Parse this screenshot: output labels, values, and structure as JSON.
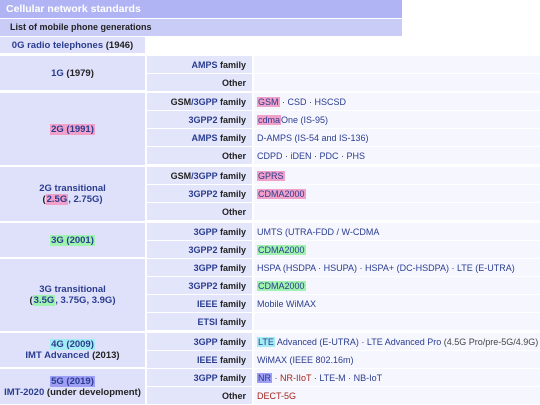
{
  "title": "Cellular network standards",
  "subtitle": "List of mobile phone generations",
  "rows_0g": {
    "label": "0G radio telephones",
    "year": " (1946)"
  },
  "groups": [
    {
      "gen_lines": [
        {
          "text": "1G",
          "suffix": " (1979)"
        }
      ],
      "rows": [
        {
          "family": "AMPS family",
          "values": []
        },
        {
          "family": "Other",
          "values": []
        }
      ]
    }
  ],
  "g1": {
    "gen": "1G",
    "year": " (1979)",
    "f1": "AMPS",
    "f1s": " family",
    "f2": "Other"
  },
  "g2": {
    "gen": "2G (1991)",
    "f1a": "GSM",
    "f1b": "/3GPP",
    "f1c": " family",
    "v1a": "GSM",
    "v1b": " · CSD · HSCSD",
    "f2a": "3GPP2",
    "f2b": " family",
    "v2a": "cdma",
    "v2b": "One (IS-95)",
    "f3a": "AMPS",
    "f3b": " family",
    "v3": "D-AMPS (IS-54 and IS-136)",
    "f4": "Other",
    "v4": "CDPD · iDEN · PDC · PHS"
  },
  "g2t": {
    "gen1": "2G transitional",
    "gen2a": "(",
    "gen2b": "2.5G",
    "gen2c": ", 2.75G)",
    "f1a": "GSM",
    "f1b": "/3GPP",
    "f1c": " family",
    "v1": "GPRS",
    "f2a": "3GPP2",
    "f2b": " family",
    "v2": "CDMA2000",
    "f3": "Other"
  },
  "g3": {
    "gen": "3G (2001)",
    "f1a": "3GPP",
    "f1b": " family",
    "v1": "UMTS (UTRA-FDD / W-CDMA",
    "f2a": "3GPP2",
    "f2b": " family",
    "v2": "CDMA2000"
  },
  "g3t": {
    "gen1": "3G transitional",
    "gen2a": "(",
    "gen2b": "3.5G",
    "gen2c": ", 3.75G, 3.9G)",
    "f1a": "3GPP",
    "f1b": " family",
    "v1": "HSPA (HSDPA · HSUPA) · HSPA+ (DC-HSDPA) · LTE (E-UTRA)",
    "f2a": "3GPP2",
    "f2b": " family",
    "v2": "CDMA2000",
    "f3a": "IEEE",
    "f3b": " family",
    "v3": "Mobile WiMAX",
    "f4a": "ETSI",
    "f4b": " family"
  },
  "g4": {
    "gen1": "4G (2009)",
    "gen2a": "IMT Advanced",
    "gen2b": " (2013)",
    "f1a": "3GPP",
    "f1b": " family",
    "v1a": "LTE",
    "v1b": " Advanced (E-UTRA) · LTE Advanced Pro",
    "v1c": " (4.5G Pro/pre-5G/4.9G)",
    "f2a": "IEEE",
    "f2b": " family",
    "v2": "WiMAX (IEEE 802.16m)"
  },
  "g5": {
    "gen1": "5G (2019)",
    "gen2a": "IMT-2020",
    "gen2b": " (under development)",
    "f1a": "3GPP",
    "f1b": " family",
    "v1a": "NR",
    "v1b": " · ",
    "v1c": "NR-IIoT",
    "v1d": " · LTE-M · NB-IoT",
    "f2": "Other",
    "v2": "DECT-5G"
  }
}
